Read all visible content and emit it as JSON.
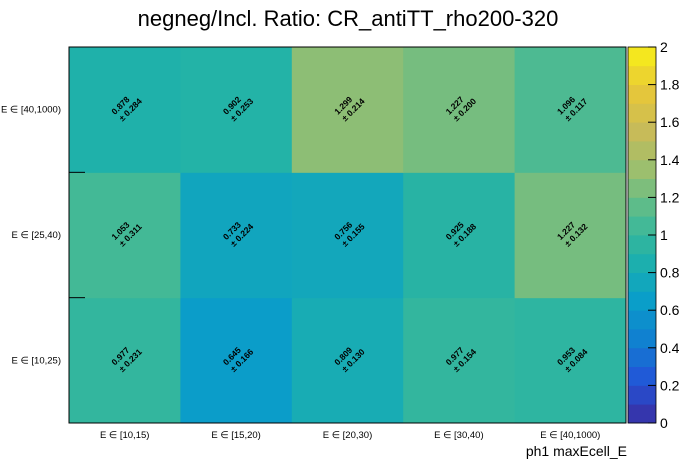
{
  "chart_data": {
    "type": "heatmap",
    "title": "negneg/Incl. Ratio: CR_antiTT_rho200-320",
    "xlabel": "ph1 maxEcell_E",
    "ylabel": "",
    "x_categories": [
      "E ∈ [10,15)",
      "E ∈ [15,20)",
      "E ∈ [20,30)",
      "E ∈ [30,40)",
      "E ∈ [40,1000)"
    ],
    "y_categories": [
      "E ∈ [10,25)",
      "E ∈ [25,40)",
      "E ∈ [40,1000)"
    ],
    "values": [
      [
        0.977,
        0.645,
        0.809,
        0.977,
        0.953
      ],
      [
        1.053,
        0.733,
        0.756,
        0.925,
        1.227
      ],
      [
        0.878,
        0.902,
        1.299,
        1.227,
        1.096
      ]
    ],
    "errors": [
      [
        0.231,
        0.166,
        0.13,
        0.154,
        0.084
      ],
      [
        0.311,
        0.224,
        0.155,
        0.188,
        0.132
      ],
      [
        0.284,
        0.253,
        0.214,
        0.2,
        0.117
      ]
    ],
    "value_labels": [
      [
        "0.977",
        "0.645",
        "0.809",
        "0.977",
        "0.953"
      ],
      [
        "1.053",
        "0.733",
        "0.756",
        "0.925",
        "1.227"
      ],
      [
        "0.878",
        "0.902",
        "1.299",
        "1.227",
        "1.096"
      ]
    ],
    "error_labels": [
      [
        "± 0.231",
        "± 0.166",
        "± 0.130",
        "± 0.154",
        "± 0.084"
      ],
      [
        "± 0.311",
        "± 0.224",
        "± 0.155",
        "± 0.188",
        "± 0.132"
      ],
      [
        "± 0.284",
        "± 0.253",
        "± 0.214",
        "± 0.200",
        "± 0.117"
      ]
    ],
    "zlim": [
      0,
      2
    ],
    "z_ticks": [
      "0",
      "0.2",
      "0.4",
      "0.6",
      "0.8",
      "1",
      "1.2",
      "1.4",
      "1.6",
      "1.8",
      "2"
    ],
    "colormap_stops": [
      "#3a2da0",
      "#2255d8",
      "#1080d0",
      "#0aa0c8",
      "#20b2a8",
      "#50bb90",
      "#98bf70",
      "#c8bb58",
      "#e8c838",
      "#f8f018"
    ],
    "grid": false,
    "legend": "colorbar-right"
  }
}
